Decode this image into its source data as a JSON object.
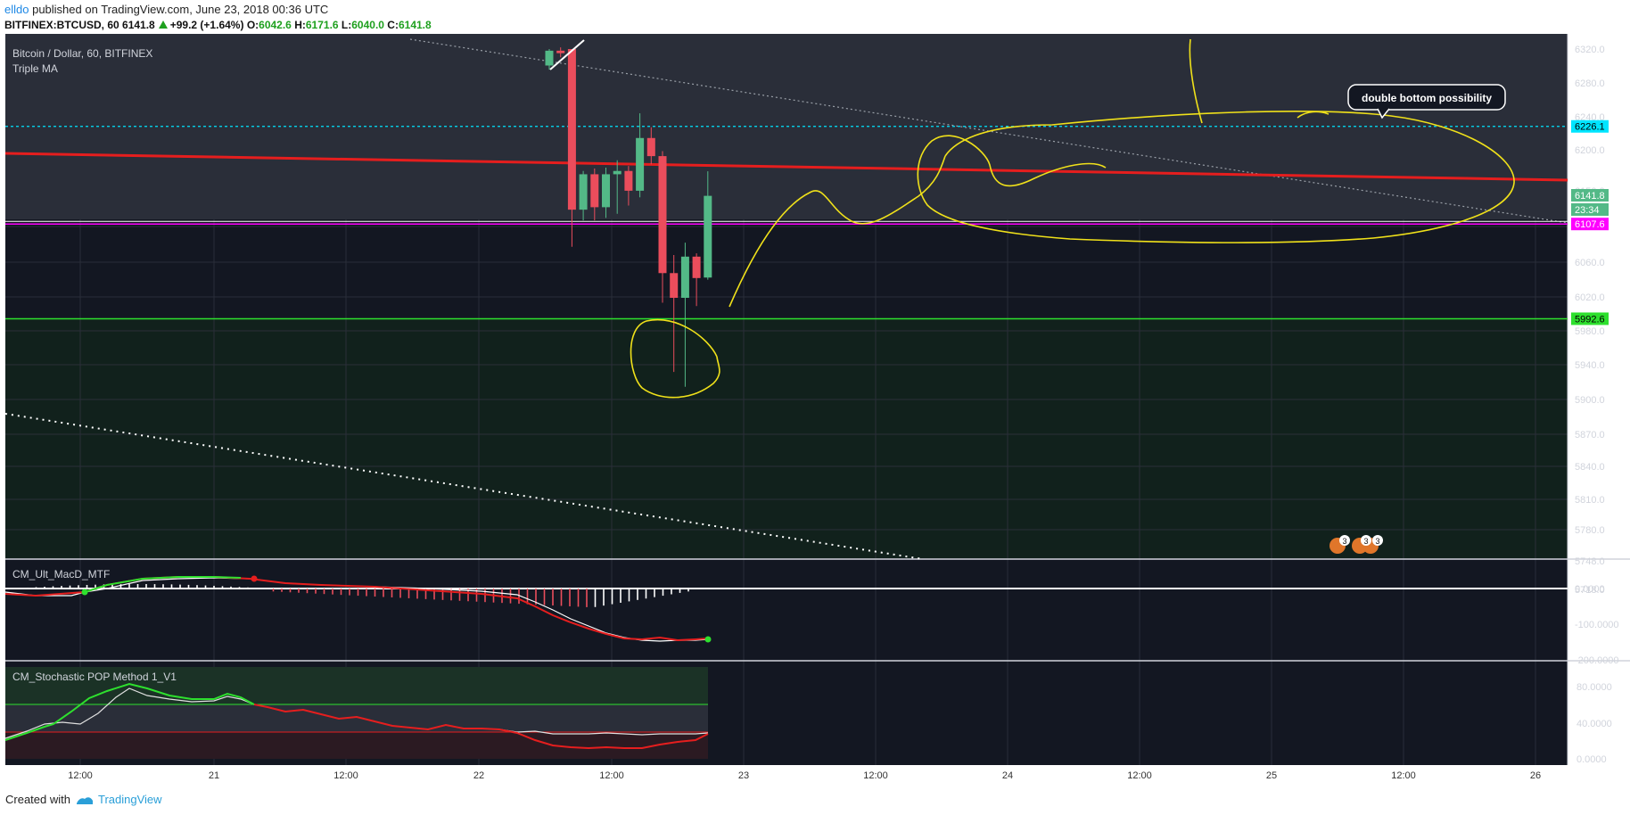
{
  "header": {
    "user": "elldo",
    "published": "published on TradingView.com, June 23, 2018 00:36 UTC"
  },
  "symbol_line": {
    "symbol": "BITFINEX:BTCUSD, 60",
    "last": "6141.8",
    "change": "+99.2 (+1.64%)",
    "o_label": "O:",
    "o": "6042.6",
    "h_label": "H:",
    "h": "6171.6",
    "l_label": "L:",
    "l": "6040.0",
    "c_label": "C:",
    "c": "6141.8"
  },
  "footer": {
    "created_with": "Created with",
    "brand": "TradingView"
  },
  "colors": {
    "bg": "#131722",
    "up": "#53b987",
    "down": "#eb4d5c",
    "cyan": "#00e5ff",
    "magenta": "#ff00ff",
    "red_line": "#e51e1e",
    "green_line": "#2ee02e",
    "drawing": "#f0e11a",
    "axis_text": "#d1d4dc"
  },
  "chart_data": [
    {
      "type": "candlestick",
      "title": "Bitcoin / Dollar, 60, BITFINEX",
      "indicator": "Triple MA",
      "y_ticks": [
        "6320.0",
        "6280.0",
        "6240.0",
        "6200.0",
        "6150.0",
        "6100.0",
        "6060.0",
        "6020.0",
        "5980.0",
        "5940.0",
        "5900.0",
        "5870.0",
        "5840.0",
        "5810.0",
        "5780.0",
        "5748.0",
        "5718.0"
      ],
      "x_ticks": [
        "12:00",
        "21",
        "12:00",
        "22",
        "12:00",
        "23",
        "12:00",
        "24",
        "12:00",
        "25",
        "12:00",
        "26"
      ],
      "price_labels": {
        "cyan": "6226.1",
        "last": "6141.8",
        "countdown": "23:34",
        "magenta": "6107.6",
        "green": "5992.6"
      },
      "horizontal_lines": {
        "cyan": 6226.1,
        "magenta": 6107.6,
        "green": 5992.6
      },
      "candles": [
        {
          "x": "22 10:00",
          "o": 6300,
          "h": 6320,
          "l": 6295,
          "c": 6318
        },
        {
          "x": "22 11:00",
          "o": 6318,
          "h": 6322,
          "l": 6310,
          "c": 6315
        },
        {
          "x": "22 12:00",
          "o": 6320,
          "h": 6320,
          "l": 6080,
          "c": 6125
        },
        {
          "x": "22 13:00",
          "o": 6125,
          "h": 6172,
          "l": 6112,
          "c": 6168
        },
        {
          "x": "22 14:00",
          "o": 6168,
          "h": 6175,
          "l": 6112,
          "c": 6128
        },
        {
          "x": "22 15:00",
          "o": 6128,
          "h": 6176,
          "l": 6115,
          "c": 6168
        },
        {
          "x": "22 16:00",
          "o": 6168,
          "h": 6185,
          "l": 6120,
          "c": 6172
        },
        {
          "x": "22 17:00",
          "o": 6172,
          "h": 6178,
          "l": 6130,
          "c": 6148
        },
        {
          "x": "22 18:00",
          "o": 6148,
          "h": 6242,
          "l": 6140,
          "c": 6212
        },
        {
          "x": "22 19:00",
          "o": 6212,
          "h": 6225,
          "l": 6180,
          "c": 6190
        },
        {
          "x": "22 20:00",
          "o": 6190,
          "h": 6196,
          "l": 6012,
          "c": 6048
        },
        {
          "x": "22 21:00",
          "o": 6048,
          "h": 6070,
          "l": 5928,
          "c": 6018
        },
        {
          "x": "22 22:00",
          "o": 6018,
          "h": 6085,
          "l": 5910,
          "c": 6068
        },
        {
          "x": "22 23:00",
          "o": 6068,
          "h": 6072,
          "l": 6008,
          "c": 6042
        },
        {
          "x": "23 00:00",
          "o": 6042.6,
          "h": 6171.6,
          "l": 6040.0,
          "c": 6141.8
        }
      ]
    },
    {
      "type": "line",
      "title": "CM_Ult_MacD_MTF",
      "y_ticks": [
        "0.0000",
        "-100.0000",
        "-200.0000"
      ]
    },
    {
      "type": "line",
      "title": "CM_Stochastic POP Method 1_V1",
      "y_ticks": [
        "80.0000",
        "40.0000",
        "0.0000"
      ]
    }
  ],
  "annotations": {
    "callout": "double bottom possibility",
    "event_badges": [
      "3",
      "3",
      "3"
    ]
  }
}
